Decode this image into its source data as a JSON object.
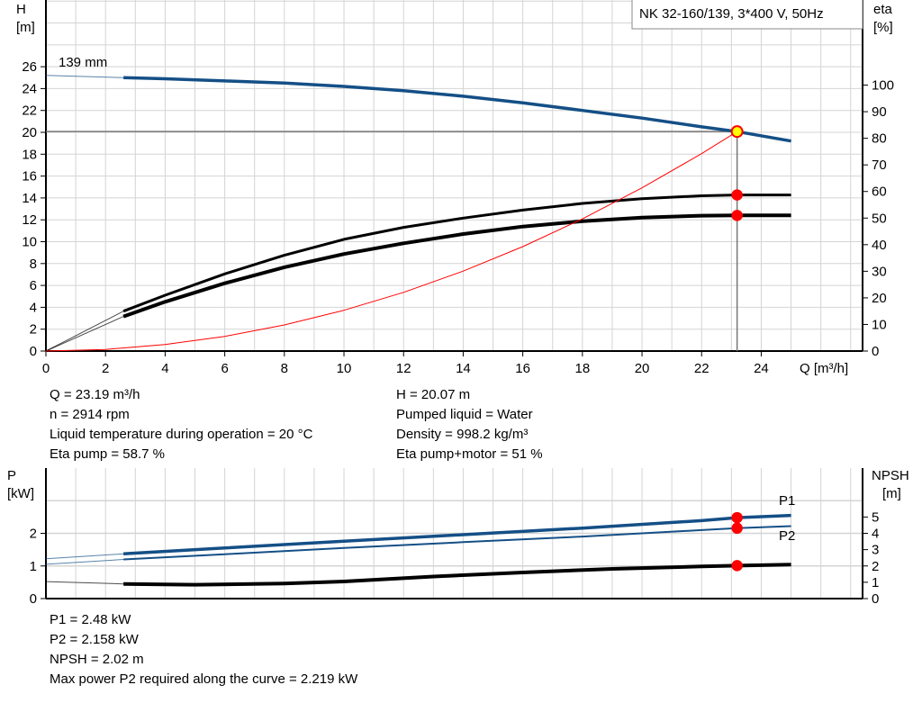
{
  "chart_data": [
    {
      "type": "line",
      "title": "NK 32-160/139, 3*400 V, 50Hz",
      "xlabel": "Q [m³/h]",
      "ylabel": "H\n[m]",
      "ylabel_lines": [
        "H",
        "[m]"
      ],
      "y2label_lines": [
        "eta",
        "[%]"
      ],
      "xlim": [
        0,
        27.4
      ],
      "ylim": [
        0,
        32.1
      ],
      "y2lim": [
        0,
        132
      ],
      "xticks": [
        0,
        2,
        4,
        6,
        8,
        10,
        12,
        14,
        16,
        18,
        20,
        22,
        24
      ],
      "yticks": [
        0,
        2,
        4,
        6,
        8,
        10,
        12,
        14,
        16,
        18,
        20,
        22,
        24,
        26
      ],
      "y2ticks": [
        0,
        10,
        20,
        30,
        40,
        50,
        60,
        70,
        80,
        90,
        100
      ],
      "grid": true,
      "annotation": "139 mm",
      "series": [
        {
          "id": "head",
          "axis": "left",
          "color": "#144f86",
          "x": [
            0,
            2.6,
            4,
            6,
            8,
            10,
            12,
            14,
            16,
            18,
            20,
            22,
            23.19,
            25
          ],
          "y": [
            25.2,
            25.0,
            24.9,
            24.7,
            24.5,
            24.2,
            23.8,
            23.3,
            22.7,
            22.0,
            21.3,
            20.5,
            20.07,
            19.2
          ]
        },
        {
          "id": "eta-pump",
          "axis": "right",
          "color": "#000000",
          "x": [
            0,
            2.6,
            4,
            6,
            8,
            10,
            12,
            14,
            16,
            18,
            20,
            22,
            23.19,
            25
          ],
          "y": [
            0,
            15,
            21,
            29,
            36,
            42,
            46.5,
            50,
            53,
            55.5,
            57.3,
            58.4,
            58.7,
            58.7
          ]
        },
        {
          "id": "eta-pump-motor",
          "axis": "right",
          "color": "#000000",
          "x": [
            0,
            2.6,
            4,
            6,
            8,
            10,
            12,
            14,
            16,
            18,
            20,
            22,
            23.19,
            25
          ],
          "y": [
            0,
            13,
            18.5,
            25.5,
            31.5,
            36.5,
            40.5,
            44,
            46.8,
            48.8,
            50.2,
            50.9,
            51,
            51
          ]
        },
        {
          "id": "system-curve",
          "axis": "left",
          "color": "#ff0000",
          "x": [
            0,
            2,
            4,
            6,
            8,
            10,
            12,
            14,
            16,
            18,
            20,
            22,
            23.19
          ],
          "y": [
            0,
            0.15,
            0.6,
            1.34,
            2.39,
            3.73,
            5.37,
            7.31,
            9.55,
            12.08,
            14.92,
            18.05,
            20.07
          ]
        }
      ],
      "duty_point": {
        "Q": 23.19,
        "H": 20.07,
        "eta_pump": 58.7,
        "eta_pump_motor": 51
      }
    },
    {
      "type": "line",
      "xlim": [
        0,
        27.4
      ],
      "ylim": [
        0,
        4
      ],
      "y2lim": [
        0,
        8
      ],
      "ylabel_lines": [
        "P",
        "[kW]"
      ],
      "y2label_lines": [
        "NPSH",
        "[m]"
      ],
      "yticks": [
        0,
        1,
        2
      ],
      "y2ticks": [
        0,
        1,
        2,
        3,
        4,
        5
      ],
      "grid": true,
      "series": [
        {
          "id": "p1",
          "name": "P1",
          "axis": "left",
          "color": "#144f86",
          "x": [
            0,
            2.6,
            6,
            10,
            14,
            18,
            22,
            23.19,
            25
          ],
          "y": [
            1.22,
            1.37,
            1.55,
            1.76,
            1.96,
            2.16,
            2.39,
            2.48,
            2.55
          ]
        },
        {
          "id": "p2",
          "name": "P2",
          "axis": "left",
          "color": "#144f86",
          "x": [
            0,
            2.6,
            6,
            10,
            14,
            18,
            22,
            23.19,
            25
          ],
          "y": [
            1.05,
            1.2,
            1.36,
            1.55,
            1.73,
            1.9,
            2.1,
            2.158,
            2.22
          ]
        },
        {
          "id": "npsh",
          "axis": "right",
          "color": "#000000",
          "x": [
            0,
            2.6,
            5,
            8,
            10,
            13,
            16,
            19,
            22,
            23.19,
            25
          ],
          "y": [
            1.04,
            0.9,
            0.85,
            0.92,
            1.05,
            1.35,
            1.6,
            1.82,
            1.97,
            2.02,
            2.08
          ]
        }
      ],
      "duty_point": {
        "Q": 23.19,
        "P1": 2.48,
        "P2": 2.158,
        "NPSH": 2.02
      }
    }
  ],
  "info_top": {
    "left": [
      "Q = 23.19 m³/h",
      "n = 2914 rpm",
      "Liquid temperature during operation = 20 °C",
      "Eta pump = 58.7 %"
    ],
    "right": [
      "H = 20.07 m",
      "Pumped liquid = Water",
      "Density = 998.2 kg/m³",
      "Eta pump+motor = 51 %"
    ]
  },
  "info_bottom": [
    "P1 = 2.48 kW",
    "P2 = 2.158 kW",
    "NPSH = 2.02 m",
    "Max power P2 required along the curve = 2.219 kW"
  ],
  "colors": {
    "curve_blue": "#144f86",
    "marker_red": "#ff0000",
    "duty_marker_fill": "#ffff00",
    "grid": "#d4d4d4"
  }
}
